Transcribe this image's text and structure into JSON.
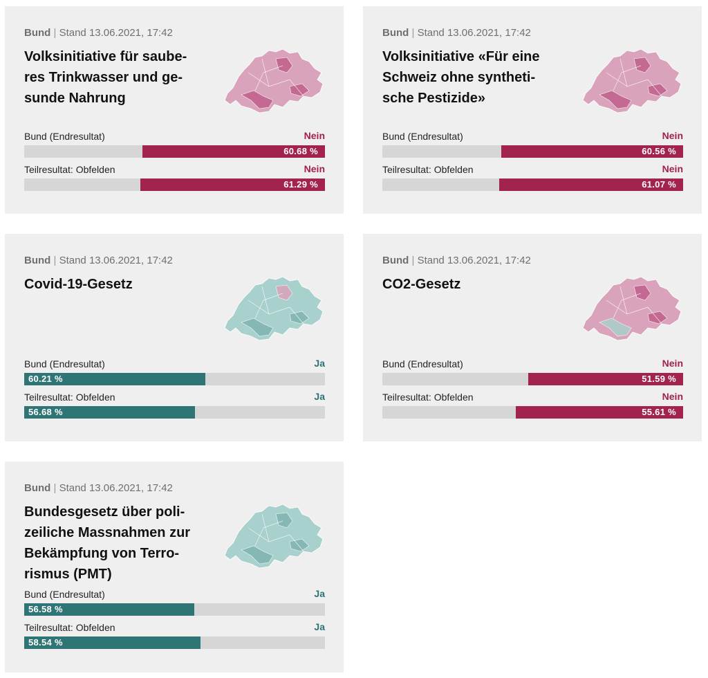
{
  "colors": {
    "nein": "#a3234f",
    "ja": "#2f7575",
    "bar_track": "#d6d6d6",
    "card_bg": "#efefef",
    "map_nein_light": "#d9a3bb",
    "map_nein_dark": "#c0608c",
    "map_ja_light": "#a8d0cd",
    "map_ja_dark": "#7fb4b0"
  },
  "cards": [
    {
      "level": "Bund",
      "stand": "Stand 13.06.2021, 17:42",
      "title_lines": [
        "Volksinitiative für saube-",
        "res Trinkwasser und ge-",
        "sunde Nahrung"
      ],
      "map_icon": "switzerland-map-icon",
      "map_tone": "nein",
      "results": [
        {
          "label": "Bund (Endresultat)",
          "verdict": "Nein",
          "percent_label": "60.68 %",
          "percent": 60.68
        },
        {
          "label": "Teilresultat: Obfelden",
          "verdict": "Nein",
          "percent_label": "61.29 %",
          "percent": 61.29
        }
      ]
    },
    {
      "level": "Bund",
      "stand": "Stand 13.06.2021, 17:42",
      "title_lines": [
        "Volksinitiative «Für eine",
        "Schweiz ohne syntheti-",
        "sche Pestizide»"
      ],
      "map_icon": "switzerland-map-icon",
      "map_tone": "nein",
      "results": [
        {
          "label": "Bund (Endresultat)",
          "verdict": "Nein",
          "percent_label": "60.56 %",
          "percent": 60.56
        },
        {
          "label": "Teilresultat: Obfelden",
          "verdict": "Nein",
          "percent_label": "61.07 %",
          "percent": 61.07
        }
      ]
    },
    {
      "level": "Bund",
      "stand": "Stand 13.06.2021, 17:42",
      "title_lines": [
        "Covid-19-Gesetz"
      ],
      "map_icon": "switzerland-map-icon",
      "map_tone": "ja",
      "results": [
        {
          "label": "Bund (Endresultat)",
          "verdict": "Ja",
          "percent_label": "60.21 %",
          "percent": 60.21
        },
        {
          "label": "Teilresultat: Obfelden",
          "verdict": "Ja",
          "percent_label": "56.68 %",
          "percent": 56.68
        }
      ]
    },
    {
      "level": "Bund",
      "stand": "Stand 13.06.2021, 17:42",
      "title_lines": [
        "CO2-Gesetz"
      ],
      "map_icon": "switzerland-map-icon",
      "map_tone": "nein",
      "results": [
        {
          "label": "Bund (Endresultat)",
          "verdict": "Nein",
          "percent_label": "51.59 %",
          "percent": 51.59
        },
        {
          "label": "Teilresultat: Obfelden",
          "verdict": "Nein",
          "percent_label": "55.61 %",
          "percent": 55.61
        }
      ]
    },
    {
      "level": "Bund",
      "stand": "Stand 13.06.2021, 17:42",
      "title_lines": [
        "Bundesgesetz über poli-",
        "zeiliche Massnahmen zur",
        "Bekämpfung von Terro-",
        "rismus (PMT)"
      ],
      "map_icon": "switzerland-map-icon",
      "map_tone": "ja",
      "results": [
        {
          "label": "Bund (Endresultat)",
          "verdict": "Ja",
          "percent_label": "56.58 %",
          "percent": 56.58
        },
        {
          "label": "Teilresultat: Obfelden",
          "verdict": "Ja",
          "percent_label": "58.54 %",
          "percent": 58.54
        }
      ]
    }
  ]
}
